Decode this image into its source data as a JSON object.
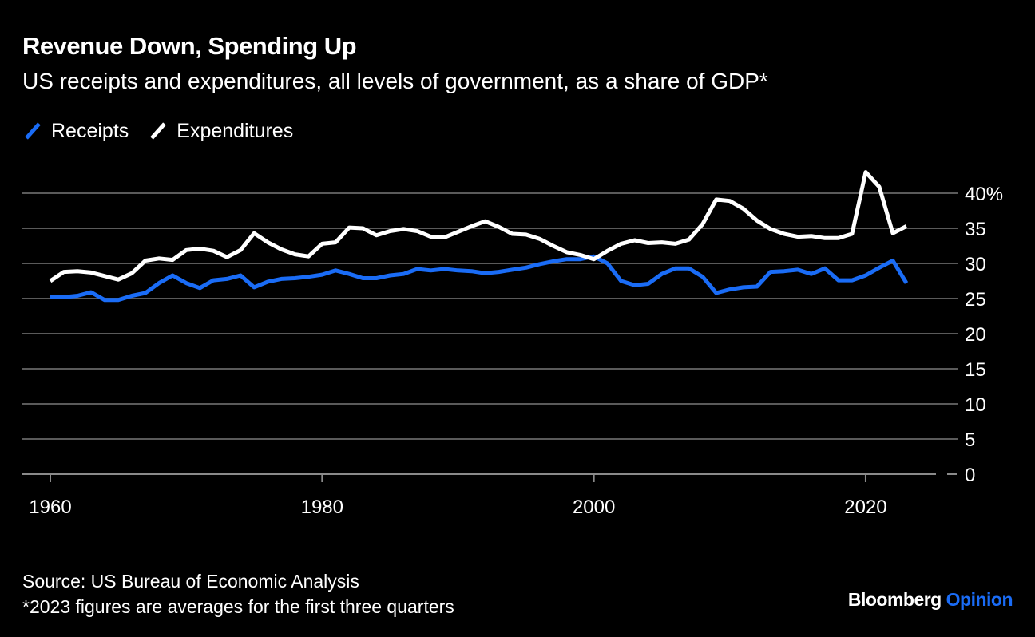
{
  "header": {
    "title": "Revenue Down, Spending Up",
    "subtitle": "US receipts and expenditures, all levels of government, as a share of GDP*"
  },
  "legend": [
    {
      "label": "Receipts",
      "color": "#1a6cf6"
    },
    {
      "label": "Expenditures",
      "color": "#ffffff"
    }
  ],
  "footer": {
    "source": "Source: US Bureau of Economic Analysis",
    "note": "*2023 figures are averages for the first three quarters"
  },
  "brand": {
    "name": "Bloomberg",
    "section": "Opinion"
  },
  "colors": {
    "background": "#000000",
    "gridline": "#5a5a5a",
    "text": "#ffffff",
    "receipts": "#1a6cf6",
    "expenditures": "#ffffff"
  },
  "chart_data": {
    "type": "line",
    "title": "Revenue Down, Spending Up",
    "subtitle": "US receipts and expenditures, all levels of government, as a share of GDP*",
    "xlabel": "",
    "ylabel": "",
    "xlim": [
      1960,
      2023
    ],
    "ylim": [
      0,
      40
    ],
    "x_ticks": [
      1960,
      1980,
      2000,
      2020
    ],
    "x_tick_labels": [
      "1960",
      "1980",
      "2000",
      "2020"
    ],
    "y_ticks": [
      0,
      5,
      10,
      15,
      20,
      25,
      30,
      35,
      40
    ],
    "y_tick_labels": [
      "0",
      "5",
      "10",
      "15",
      "20",
      "25",
      "30",
      "35",
      "40%"
    ],
    "y_axis_side": "right",
    "grid": true,
    "legend_position": "top-left",
    "x": [
      1960,
      1961,
      1962,
      1963,
      1964,
      1965,
      1966,
      1967,
      1968,
      1969,
      1970,
      1971,
      1972,
      1973,
      1974,
      1975,
      1976,
      1977,
      1978,
      1979,
      1980,
      1981,
      1982,
      1983,
      1984,
      1985,
      1986,
      1987,
      1988,
      1989,
      1990,
      1991,
      1992,
      1993,
      1994,
      1995,
      1996,
      1997,
      1998,
      1999,
      2000,
      2001,
      2002,
      2003,
      2004,
      2005,
      2006,
      2007,
      2008,
      2009,
      2010,
      2011,
      2012,
      2013,
      2014,
      2015,
      2016,
      2017,
      2018,
      2019,
      2020,
      2021,
      2022,
      2023
    ],
    "series": [
      {
        "name": "Receipts",
        "color": "#1a6cf6",
        "values": [
          25.2,
          25.2,
          25.4,
          25.9,
          24.8,
          24.8,
          25.4,
          25.8,
          27.2,
          28.3,
          27.2,
          26.5,
          27.6,
          27.8,
          28.3,
          26.6,
          27.4,
          27.8,
          27.9,
          28.1,
          28.4,
          29.0,
          28.5,
          27.9,
          27.9,
          28.3,
          28.5,
          29.2,
          29.0,
          29.2,
          29.0,
          28.9,
          28.6,
          28.8,
          29.1,
          29.4,
          29.9,
          30.3,
          30.6,
          30.6,
          31.0,
          30.0,
          27.5,
          26.9,
          27.1,
          28.5,
          29.3,
          29.3,
          28.1,
          25.8,
          26.3,
          26.6,
          26.7,
          28.8,
          28.9,
          29.1,
          28.5,
          29.3,
          27.6,
          27.6,
          28.3,
          29.4,
          30.4,
          27.2
        ]
      },
      {
        "name": "Expenditures",
        "color": "#ffffff",
        "values": [
          27.5,
          28.8,
          28.9,
          28.7,
          28.2,
          27.7,
          28.6,
          30.4,
          30.7,
          30.5,
          31.9,
          32.1,
          31.8,
          30.9,
          31.9,
          34.3,
          33.0,
          32.0,
          31.3,
          31.0,
          32.8,
          33.0,
          35.1,
          35.0,
          34.0,
          34.6,
          34.9,
          34.6,
          33.8,
          33.7,
          34.5,
          35.3,
          36.0,
          35.2,
          34.2,
          34.1,
          33.5,
          32.5,
          31.6,
          31.2,
          30.6,
          31.8,
          32.8,
          33.3,
          32.9,
          33.0,
          32.8,
          33.4,
          35.6,
          39.1,
          38.9,
          37.8,
          36.1,
          34.9,
          34.2,
          33.8,
          33.9,
          33.6,
          33.6,
          34.2,
          43.0,
          40.9,
          34.3,
          35.3
        ]
      }
    ]
  }
}
